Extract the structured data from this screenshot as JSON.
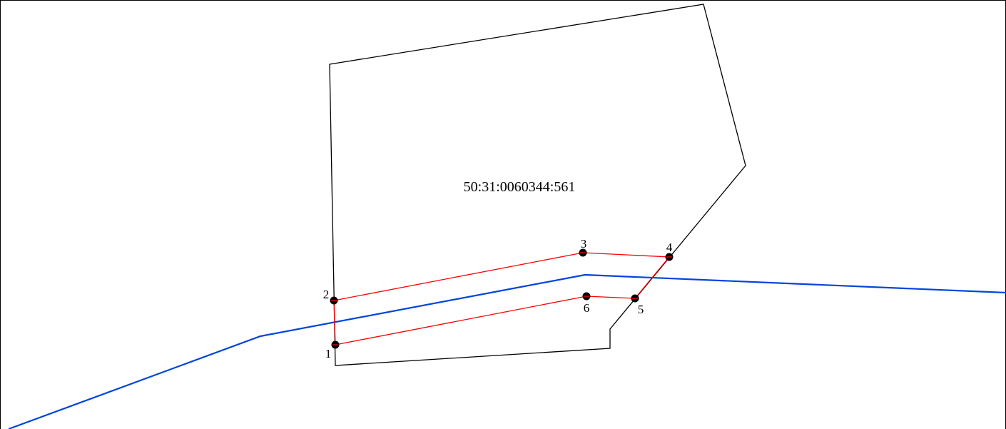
{
  "map": {
    "parcel": {
      "cadastral_number": "50:31:0060344:561",
      "outline_color": "#000000"
    },
    "zone": {
      "outline_color": "#ff0000"
    },
    "line": {
      "color": "#0044dd"
    },
    "points": [
      {
        "label": "1"
      },
      {
        "label": "2"
      },
      {
        "label": "3"
      },
      {
        "label": "4"
      },
      {
        "label": "5"
      },
      {
        "label": "6"
      }
    ]
  }
}
